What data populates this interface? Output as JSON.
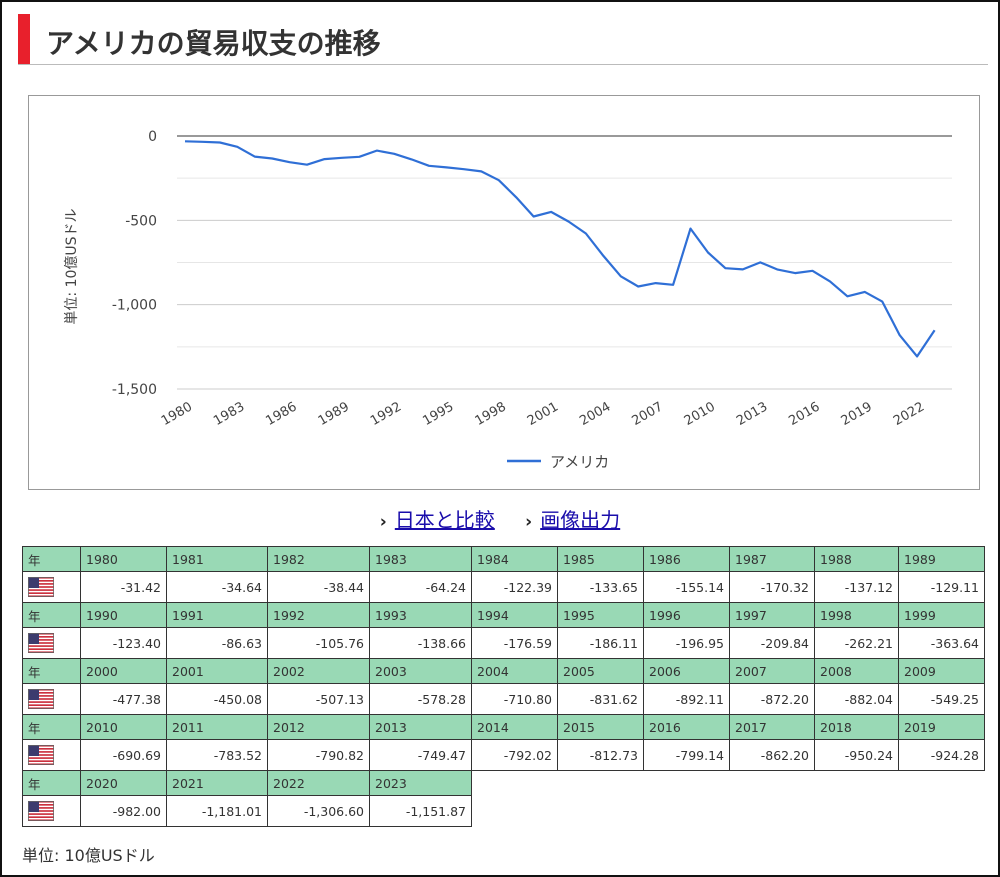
{
  "title": "アメリカの貿易収支の推移",
  "links": [
    {
      "arrow": "›",
      "label": "日本と比較"
    },
    {
      "arrow": "›",
      "label": "画像出力"
    }
  ],
  "unit_note": "単位: 10億USドル",
  "table_row_header": "年",
  "colors": {
    "accent": "#e8202c",
    "line": "#2f6fd6",
    "year_row_bg": "#99d9b5",
    "link": "#1a0dab"
  },
  "chart_data": {
    "type": "line",
    "title": "",
    "xlabel": "",
    "ylabel": "単位: 10億USドル",
    "ylim": [
      -1500,
      0
    ],
    "yticks": [
      0,
      -500,
      -1000,
      -1500
    ],
    "ytick_labels": [
      "0",
      "-500",
      "-1,000",
      "-1,500"
    ],
    "xtick_labels": [
      "1980",
      "1983",
      "1986",
      "1989",
      "1992",
      "1995",
      "1998",
      "2001",
      "2004",
      "2007",
      "2010",
      "2013",
      "2016",
      "2019",
      "2022"
    ],
    "legend_position": "bottom",
    "grid": true,
    "x": [
      1980,
      1981,
      1982,
      1983,
      1984,
      1985,
      1986,
      1987,
      1988,
      1989,
      1990,
      1991,
      1992,
      1993,
      1994,
      1995,
      1996,
      1997,
      1998,
      1999,
      2000,
      2001,
      2002,
      2003,
      2004,
      2005,
      2006,
      2007,
      2008,
      2009,
      2010,
      2011,
      2012,
      2013,
      2014,
      2015,
      2016,
      2017,
      2018,
      2019,
      2020,
      2021,
      2022,
      2023
    ],
    "series": [
      {
        "name": "アメリカ",
        "values": [
          -31.42,
          -34.64,
          -38.44,
          -64.24,
          -122.39,
          -133.65,
          -155.14,
          -170.32,
          -137.12,
          -129.11,
          -123.4,
          -86.63,
          -105.76,
          -138.66,
          -176.59,
          -186.11,
          -196.95,
          -209.84,
          -262.21,
          -363.64,
          -477.38,
          -450.08,
          -507.13,
          -578.28,
          -710.8,
          -831.62,
          -892.11,
          -872.2,
          -882.04,
          -549.25,
          -690.69,
          -783.52,
          -790.82,
          -749.47,
          -792.02,
          -812.73,
          -799.14,
          -862.2,
          -950.24,
          -924.28,
          -982.0,
          -1181.01,
          -1306.6,
          -1151.87
        ]
      }
    ]
  },
  "table_rows": [
    {
      "years": [
        "1980",
        "1981",
        "1982",
        "1983",
        "1984",
        "1985",
        "1986",
        "1987",
        "1988",
        "1989"
      ],
      "values": [
        "-31.42",
        "-34.64",
        "-38.44",
        "-64.24",
        "-122.39",
        "-133.65",
        "-155.14",
        "-170.32",
        "-137.12",
        "-129.11"
      ]
    },
    {
      "years": [
        "1990",
        "1991",
        "1992",
        "1993",
        "1994",
        "1995",
        "1996",
        "1997",
        "1998",
        "1999"
      ],
      "values": [
        "-123.40",
        "-86.63",
        "-105.76",
        "-138.66",
        "-176.59",
        "-186.11",
        "-196.95",
        "-209.84",
        "-262.21",
        "-363.64"
      ]
    },
    {
      "years": [
        "2000",
        "2001",
        "2002",
        "2003",
        "2004",
        "2005",
        "2006",
        "2007",
        "2008",
        "2009"
      ],
      "values": [
        "-477.38",
        "-450.08",
        "-507.13",
        "-578.28",
        "-710.80",
        "-831.62",
        "-892.11",
        "-872.20",
        "-882.04",
        "-549.25"
      ]
    },
    {
      "years": [
        "2010",
        "2011",
        "2012",
        "2013",
        "2014",
        "2015",
        "2016",
        "2017",
        "2018",
        "2019"
      ],
      "values": [
        "-690.69",
        "-783.52",
        "-790.82",
        "-749.47",
        "-792.02",
        "-812.73",
        "-799.14",
        "-862.20",
        "-950.24",
        "-924.28"
      ]
    },
    {
      "years": [
        "2020",
        "2021",
        "2022",
        "2023"
      ],
      "values": [
        "-982.00",
        "-1,181.01",
        "-1,306.60",
        "-1,151.87"
      ]
    }
  ]
}
